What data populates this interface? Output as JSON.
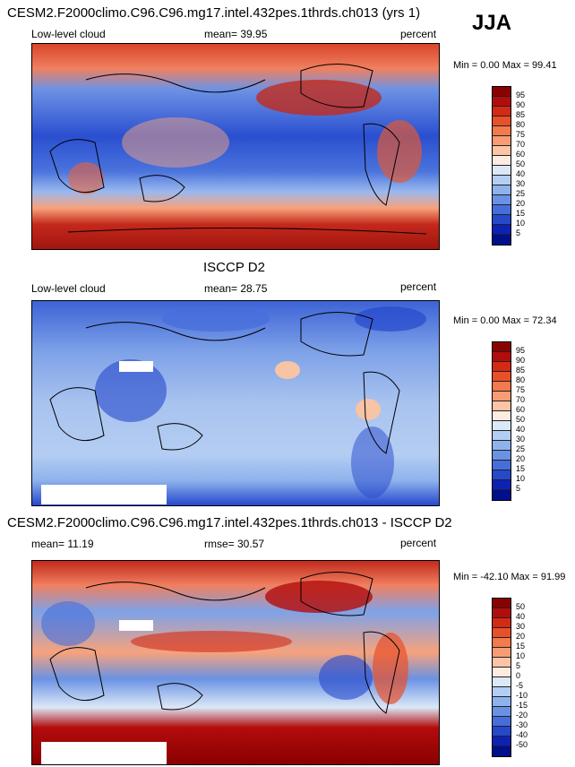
{
  "header": {
    "model_title": "CESM2.F2000climo.C96.C96.mg17.intel.432pes.1thrds.ch013 (yrs 1)",
    "season": "JJA"
  },
  "panels": [
    {
      "id": "model",
      "title": "CESM2.F2000climo.C96.C96.mg17.intel.432pes.1thrds.ch013 (yrs 1)",
      "variable": "Low-level cloud",
      "stat_text": "mean=  39.95",
      "units": "percent",
      "minmax_text": "Min =   0.00 Max =  99.41",
      "colorbar_labels": [
        "95",
        "90",
        "85",
        "80",
        "75",
        "70",
        "60",
        "50",
        "40",
        "30",
        "25",
        "20",
        "15",
        "10",
        "5"
      ],
      "colorbar_colors": [
        "#8b0000",
        "#b30c0c",
        "#d42a14",
        "#e8502a",
        "#f27a4c",
        "#f79c74",
        "#fcc4a4",
        "#fdebe0",
        "#dbe8f8",
        "#b4cdf2",
        "#8eb2ec",
        "#6a92e4",
        "#466edb",
        "#2548cc",
        "#0c22b4",
        "#000f8a"
      ]
    },
    {
      "id": "obs",
      "title": "ISCCP D2",
      "variable": "Low-level cloud",
      "stat_text": "mean=  28.75",
      "units": "percent",
      "minmax_text": "Min =   0.00 Max =  72.34",
      "colorbar_labels": [
        "95",
        "90",
        "85",
        "80",
        "75",
        "70",
        "60",
        "50",
        "40",
        "30",
        "25",
        "20",
        "15",
        "10",
        "5"
      ],
      "colorbar_colors": [
        "#8b0000",
        "#b30c0c",
        "#d42a14",
        "#e8502a",
        "#f27a4c",
        "#f79c74",
        "#fcc4a4",
        "#fdebe0",
        "#dbe8f8",
        "#b4cdf2",
        "#8eb2ec",
        "#6a92e4",
        "#466edb",
        "#2548cc",
        "#0c22b4",
        "#000f8a"
      ]
    },
    {
      "id": "diff",
      "title": "CESM2.F2000climo.C96.C96.mg17.intel.432pes.1thrds.ch013 - ISCCP D2",
      "variable": "mean=  11.19",
      "stat_text": "rmse=  30.57",
      "units": "percent",
      "minmax_text": "Min = -42.10 Max =  91.99",
      "colorbar_labels": [
        "50",
        "40",
        "30",
        "20",
        "15",
        "10",
        "5",
        "0",
        "-5",
        "-10",
        "-15",
        "-20",
        "-30",
        "-40",
        "-50"
      ],
      "colorbar_colors": [
        "#8b0000",
        "#b30c0c",
        "#d42a14",
        "#e8502a",
        "#f27a4c",
        "#f79c74",
        "#fcc4a4",
        "#fdebe0",
        "#dbe8f8",
        "#b4cdf2",
        "#8eb2ec",
        "#6a92e4",
        "#466edb",
        "#2548cc",
        "#0c22b4",
        "#000f8a"
      ]
    }
  ],
  "colors": {
    "map_ocean_mid": "#7fa3e6",
    "map_high": "#b8231a",
    "map_low": "#1c3fc4",
    "land_outline": "#000000",
    "missing": "#ffffff"
  }
}
